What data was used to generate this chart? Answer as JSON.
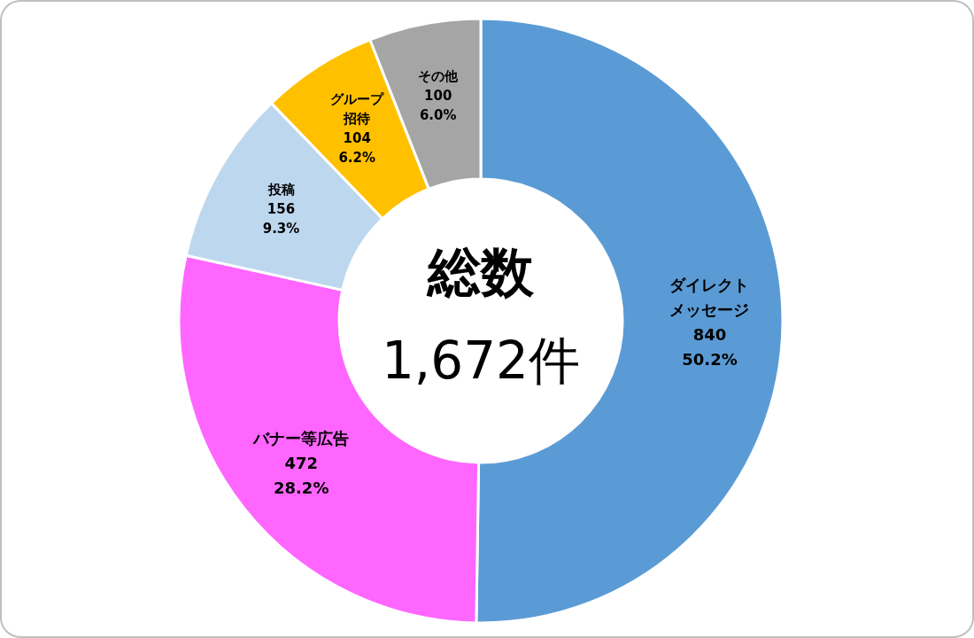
{
  "chart_data": {
    "type": "donut",
    "categories": [
      "ダイレクトメッセージ",
      "バナー等広告",
      "投稿",
      "グループ招待",
      "その他"
    ],
    "values": [
      840,
      472,
      156,
      104,
      100
    ],
    "value_labels": [
      "840\n50.2%",
      "472\n28.2%",
      "156\n9.3%",
      "104\n6.2%",
      "100\n6.0%"
    ],
    "colors": [
      "#5b9bd5",
      "#ff66ff",
      "#bdd7ee",
      "#ffc000",
      "#a5a5a5"
    ],
    "annotations": [
      "総数",
      "1,672件"
    ]
  }
}
